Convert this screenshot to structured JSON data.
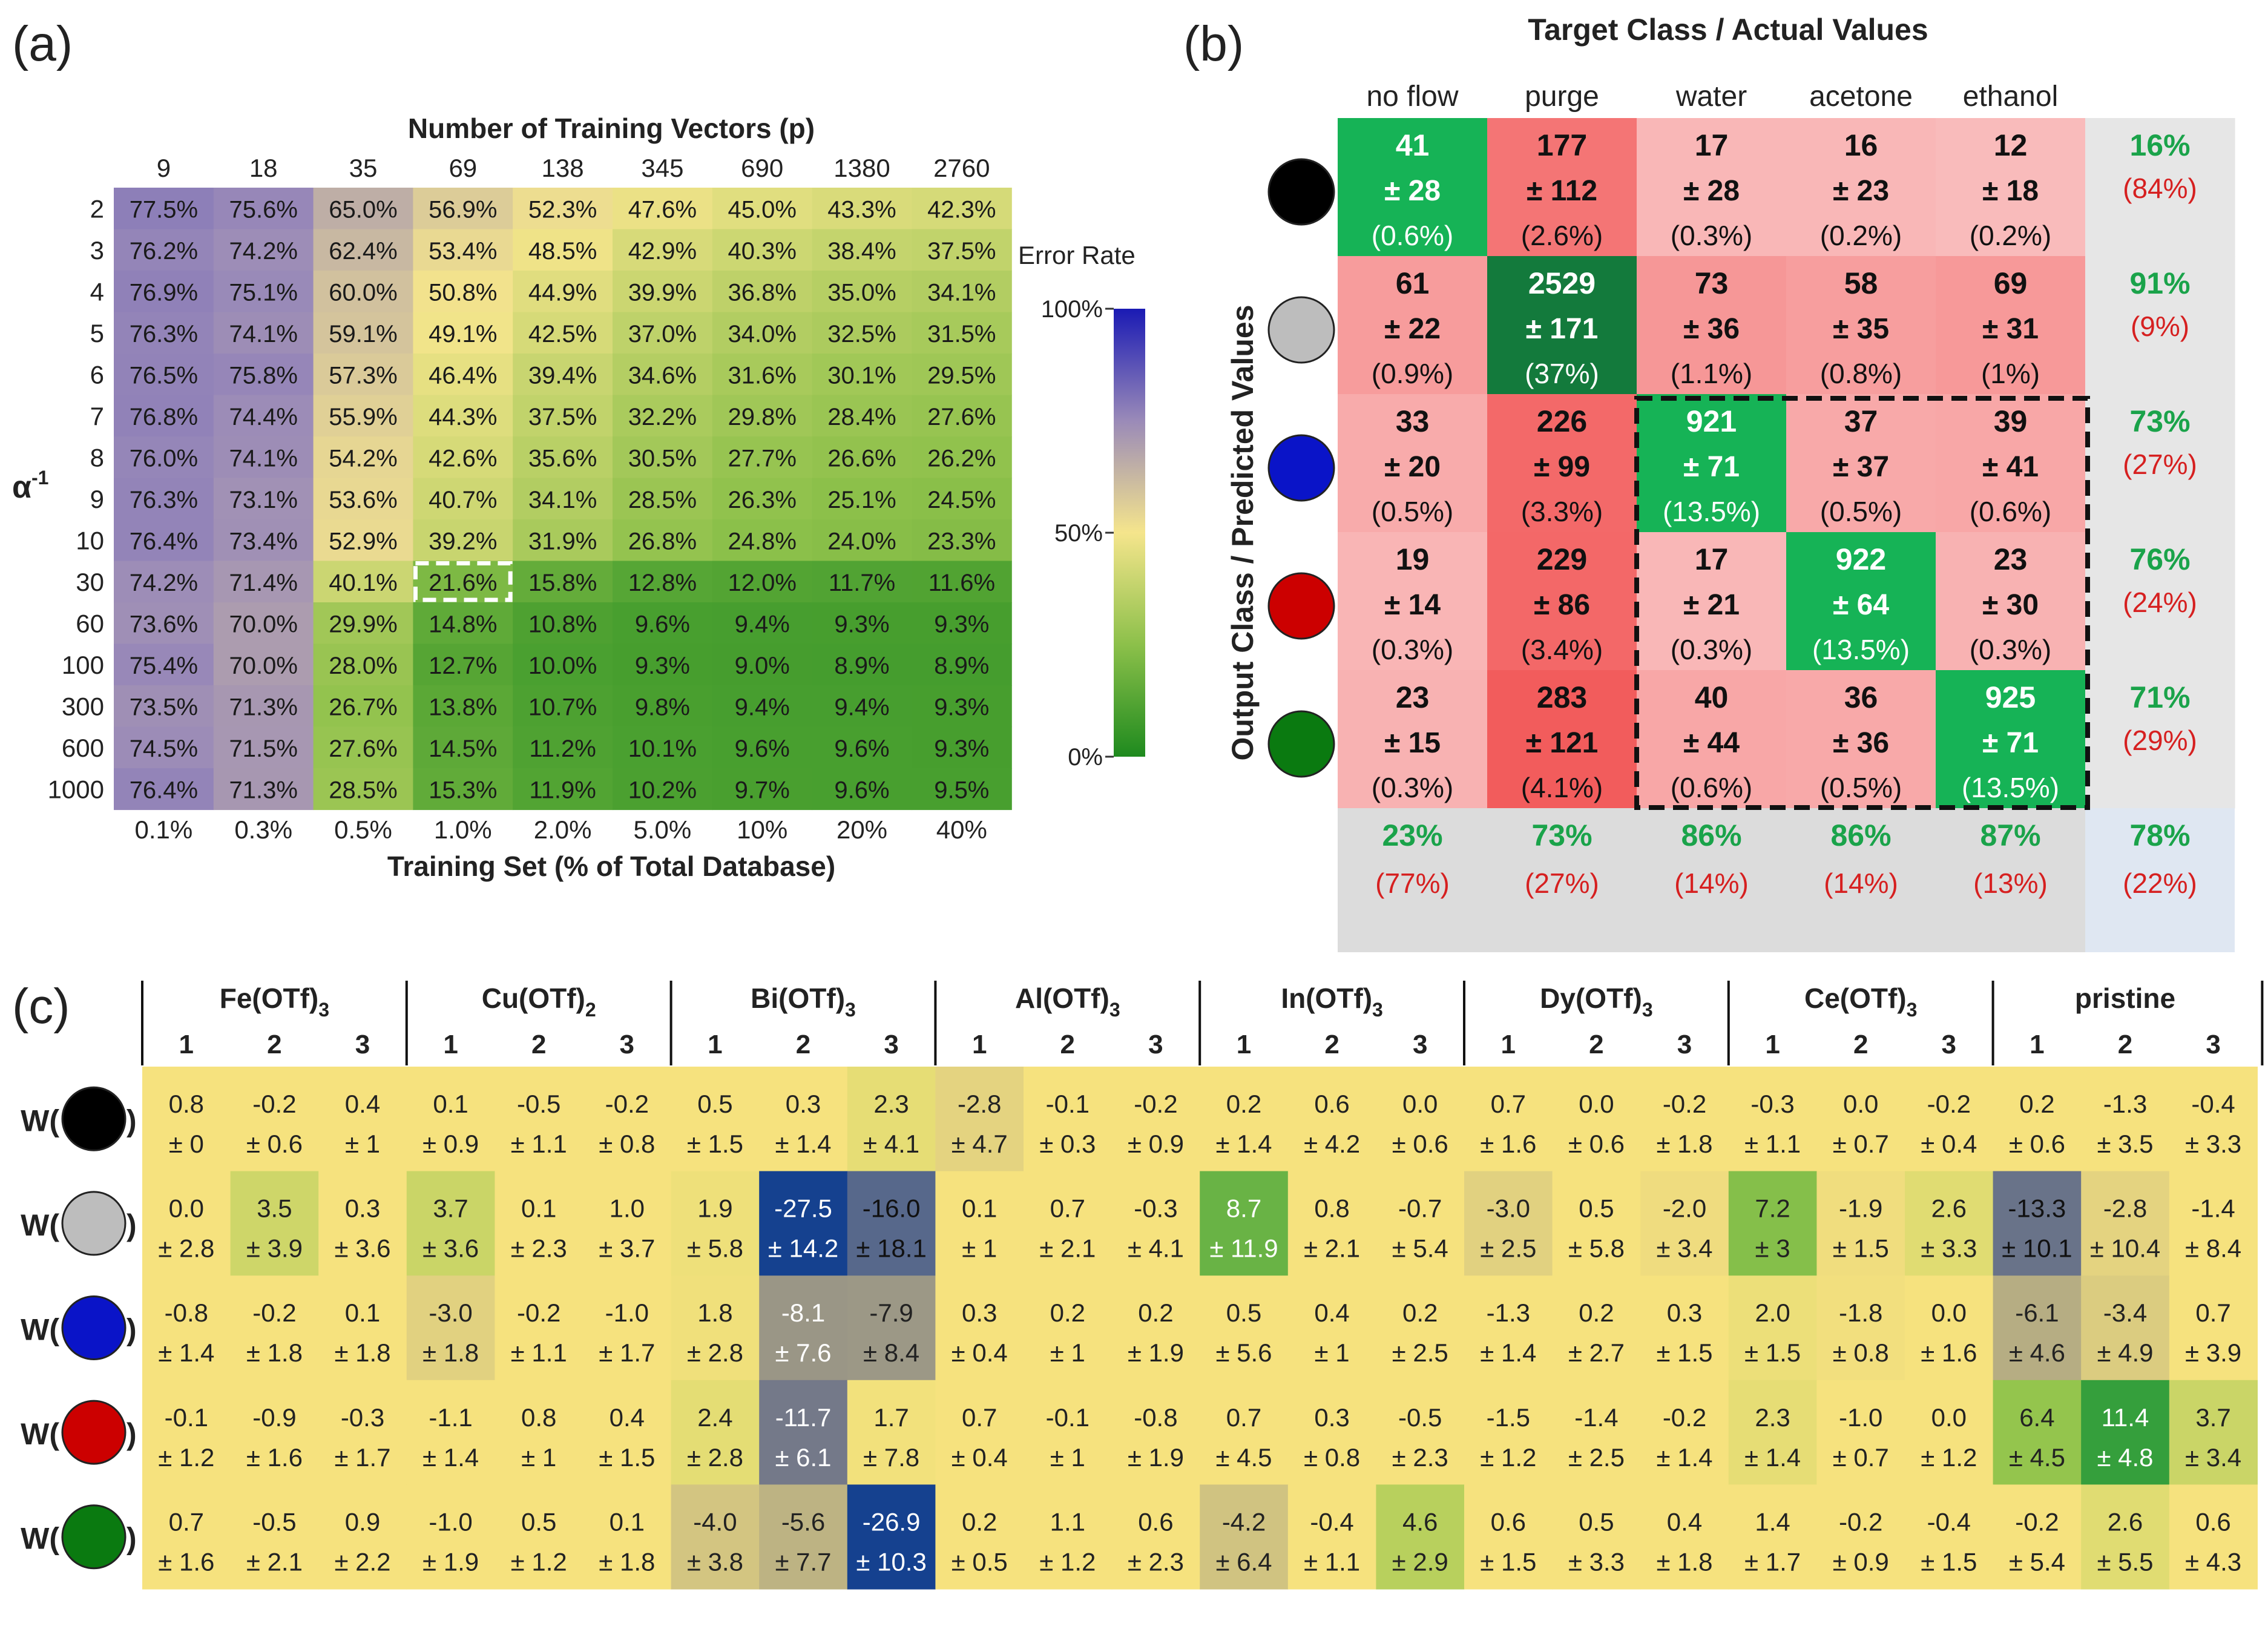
{
  "chart_data": [
    {
      "panel": "(a)",
      "type": "heatmap",
      "title": "Number of Training Vectors (p)",
      "xlabel": "Training Set (% of Total Database)",
      "ylabel": "α",
      "ylabel_sup": "-1",
      "x_top_ticks": [
        "9",
        "18",
        "35",
        "69",
        "138",
        "345",
        "690",
        "1380",
        "2760"
      ],
      "x_bottom_ticks": [
        "0.1%",
        "0.3%",
        "0.5%",
        "1.0%",
        "2.0%",
        "5.0%",
        "10%",
        "20%",
        "40%"
      ],
      "y_ticks": [
        "2",
        "3",
        "4",
        "5",
        "6",
        "7",
        "8",
        "9",
        "10",
        "30",
        "60",
        "100",
        "300",
        "600",
        "1000"
      ],
      "values": [
        [
          77.5,
          75.6,
          65.0,
          56.9,
          52.3,
          47.6,
          45.0,
          43.3,
          42.3
        ],
        [
          76.2,
          74.2,
          62.4,
          53.4,
          48.5,
          42.9,
          40.3,
          38.4,
          37.5
        ],
        [
          76.9,
          75.1,
          60.0,
          50.8,
          44.9,
          39.9,
          36.8,
          35.0,
          34.1
        ],
        [
          76.3,
          74.1,
          59.1,
          49.1,
          42.5,
          37.0,
          34.0,
          32.5,
          31.5
        ],
        [
          76.5,
          75.8,
          57.3,
          46.4,
          39.4,
          34.6,
          31.6,
          30.1,
          29.5
        ],
        [
          76.8,
          74.4,
          55.9,
          44.3,
          37.5,
          32.2,
          29.8,
          28.4,
          27.6
        ],
        [
          76.0,
          74.1,
          54.2,
          42.6,
          35.6,
          30.5,
          27.7,
          26.6,
          26.2
        ],
        [
          76.3,
          73.1,
          53.6,
          40.7,
          34.1,
          28.5,
          26.3,
          25.1,
          24.5
        ],
        [
          76.4,
          73.4,
          52.9,
          39.2,
          31.9,
          26.8,
          24.8,
          24.0,
          23.3
        ],
        [
          74.2,
          71.4,
          40.1,
          21.6,
          15.8,
          12.8,
          12.0,
          11.7,
          11.6
        ],
        [
          73.6,
          70.0,
          29.9,
          14.8,
          10.8,
          9.6,
          9.4,
          9.3,
          9.3
        ],
        [
          75.4,
          70.0,
          28.0,
          12.7,
          10.0,
          9.3,
          9.0,
          8.9,
          8.9
        ],
        [
          73.5,
          71.3,
          26.7,
          13.8,
          10.7,
          9.8,
          9.4,
          9.4,
          9.3
        ],
        [
          74.5,
          71.5,
          27.6,
          14.5,
          11.2,
          10.1,
          9.6,
          9.6,
          9.3
        ],
        [
          76.4,
          71.3,
          28.5,
          15.3,
          11.9,
          10.2,
          9.7,
          9.6,
          9.5
        ]
      ],
      "value_suffix": "%",
      "highlight": {
        "row": "30",
        "column": "69"
      },
      "colorbar": {
        "label": "Error Rate",
        "ticks": [
          "100%",
          "50%",
          "0%"
        ],
        "range": [
          0,
          100
        ]
      }
    },
    {
      "panel": "(b)",
      "type": "table",
      "title": "Target Class / Actual Values",
      "ylabel": "Output Class / Predicted Values",
      "columns": [
        "no flow",
        "purge",
        "water",
        "acetone",
        "ethanol"
      ],
      "row_markers": [
        "#000000",
        "#bdbdbd",
        "#0a14c8",
        "#cc0000",
        "#0a7a10"
      ],
      "cells": [
        [
          {
            "n": "41",
            "sd": "± 28",
            "pct": "(0.6%)"
          },
          {
            "n": "177",
            "sd": "± 112",
            "pct": "(2.6%)"
          },
          {
            "n": "17",
            "sd": "± 28",
            "pct": "(0.3%)"
          },
          {
            "n": "16",
            "sd": "± 23",
            "pct": "(0.2%)"
          },
          {
            "n": "12",
            "sd": "± 18",
            "pct": "(0.2%)"
          }
        ],
        [
          {
            "n": "61",
            "sd": "± 22",
            "pct": "(0.9%)"
          },
          {
            "n": "2529",
            "sd": "± 171",
            "pct": "(37%)"
          },
          {
            "n": "73",
            "sd": "± 36",
            "pct": "(1.1%)"
          },
          {
            "n": "58",
            "sd": "± 35",
            "pct": "(0.8%)"
          },
          {
            "n": "69",
            "sd": "± 31",
            "pct": "(1%)"
          }
        ],
        [
          {
            "n": "33",
            "sd": "± 20",
            "pct": "(0.5%)"
          },
          {
            "n": "226",
            "sd": "± 99",
            "pct": "(3.3%)"
          },
          {
            "n": "921",
            "sd": "± 71",
            "pct": "(13.5%)"
          },
          {
            "n": "37",
            "sd": "± 37",
            "pct": "(0.5%)"
          },
          {
            "n": "39",
            "sd": "± 41",
            "pct": "(0.6%)"
          }
        ],
        [
          {
            "n": "19",
            "sd": "± 14",
            "pct": "(0.3%)"
          },
          {
            "n": "229",
            "sd": "± 86",
            "pct": "(3.4%)"
          },
          {
            "n": "17",
            "sd": "± 21",
            "pct": "(0.3%)"
          },
          {
            "n": "922",
            "sd": "± 64",
            "pct": "(13.5%)"
          },
          {
            "n": "23",
            "sd": "± 30",
            "pct": "(0.3%)"
          }
        ],
        [
          {
            "n": "23",
            "sd": "± 15",
            "pct": "(0.3%)"
          },
          {
            "n": "283",
            "sd": "± 121",
            "pct": "(4.1%)"
          },
          {
            "n": "40",
            "sd": "± 44",
            "pct": "(0.6%)"
          },
          {
            "n": "36",
            "sd": "± 36",
            "pct": "(0.5%)"
          },
          {
            "n": "925",
            "sd": "± 71",
            "pct": "(13.5%)"
          }
        ]
      ],
      "row_summary": [
        {
          "good": "16%",
          "bad": "(84%)"
        },
        {
          "good": "91%",
          "bad": "(9%)"
        },
        {
          "good": "73%",
          "bad": "(27%)"
        },
        {
          "good": "76%",
          "bad": "(24%)"
        },
        {
          "good": "71%",
          "bad": "(29%)"
        }
      ],
      "col_summary": [
        {
          "good": "23%",
          "bad": "(77%)"
        },
        {
          "good": "73%",
          "bad": "(27%)"
        },
        {
          "good": "86%",
          "bad": "(14%)"
        },
        {
          "good": "86%",
          "bad": "(14%)"
        },
        {
          "good": "87%",
          "bad": "(13%)"
        }
      ],
      "overall": {
        "good": "78%",
        "bad": "(22%)"
      }
    },
    {
      "panel": "(c)",
      "type": "heatmap",
      "groups": [
        {
          "name": "Fe(OTf)",
          "sub": "3"
        },
        {
          "name": "Cu(OTf)",
          "sub": "2"
        },
        {
          "name": "Bi(OTf)",
          "sub": "3"
        },
        {
          "name": "Al(OTf)",
          "sub": "3"
        },
        {
          "name": "In(OTf)",
          "sub": "3"
        },
        {
          "name": "Dy(OTf)",
          "sub": "3"
        },
        {
          "name": "Ce(OTf)",
          "sub": "3"
        },
        {
          "name": "pristine",
          "sub": ""
        }
      ],
      "subcols": [
        "1",
        "2",
        "3"
      ],
      "row_prefix": "W(",
      "row_suffix": ")",
      "row_markers": [
        "#000000",
        "#bdbdbd",
        "#0a14c8",
        "#cc0000",
        "#0a7a10"
      ],
      "values": [
        [
          "0.8",
          "-0.2",
          "0.4",
          "0.1",
          "-0.5",
          "-0.2",
          "0.5",
          "0.3",
          "2.3",
          "-2.8",
          "-0.1",
          "-0.2",
          "0.2",
          "0.6",
          "0.0",
          "0.7",
          "0.0",
          "-0.2",
          "-0.3",
          "0.0",
          "-0.2",
          "0.2",
          "-1.3",
          "-0.4"
        ],
        [
          "0.0",
          "3.5",
          "0.3",
          "3.7",
          "0.1",
          "1.0",
          "1.9",
          "-27.5",
          "-16.0",
          "0.1",
          "0.7",
          "-0.3",
          "8.7",
          "0.8",
          "-0.7",
          "-3.0",
          "0.5",
          "-2.0",
          "7.2",
          "-1.9",
          "2.6",
          "-13.3",
          "-2.8",
          "-1.4"
        ],
        [
          "-0.8",
          "-0.2",
          "0.1",
          "-3.0",
          "-0.2",
          "-1.0",
          "1.8",
          "-8.1",
          "-7.9",
          "0.3",
          "0.2",
          "0.2",
          "0.5",
          "0.4",
          "0.2",
          "-1.3",
          "0.2",
          "0.3",
          "2.0",
          "-1.8",
          "0.0",
          "-6.1",
          "-3.4",
          "0.7"
        ],
        [
          "-0.1",
          "-0.9",
          "-0.3",
          "-1.1",
          "0.8",
          "0.4",
          "2.4",
          "-11.7",
          "1.7",
          "0.7",
          "-0.1",
          "-0.8",
          "0.7",
          "0.3",
          "-0.5",
          "-1.5",
          "-1.4",
          "-0.2",
          "2.3",
          "-1.0",
          "0.0",
          "6.4",
          "11.4",
          "3.7"
        ],
        [
          "0.7",
          "-0.5",
          "0.9",
          "-1.0",
          "0.5",
          "0.1",
          "-4.0",
          "-5.6",
          "-26.9",
          "0.2",
          "1.1",
          "0.6",
          "-4.2",
          "-0.4",
          "4.6",
          "0.6",
          "0.5",
          "0.4",
          "1.4",
          "-0.2",
          "-0.4",
          "-0.2",
          "2.6",
          "0.6"
        ]
      ],
      "errors": [
        [
          "± 0",
          "± 0.6",
          "± 1",
          "± 0.9",
          "± 1.1",
          "± 0.8",
          "± 1.5",
          "± 1.4",
          "± 4.1",
          "± 4.7",
          "± 0.3",
          "± 0.9",
          "± 1.4",
          "± 4.2",
          "± 0.6",
          "± 1.6",
          "± 0.6",
          "± 1.8",
          "± 1.1",
          "± 0.7",
          "± 0.4",
          "± 0.6",
          "± 3.5",
          "± 3.3"
        ],
        [
          "± 2.8",
          "± 3.9",
          "± 3.6",
          "± 3.6",
          "± 2.3",
          "± 3.7",
          "± 5.8",
          "± 14.2",
          "± 18.1",
          "± 1",
          "± 2.1",
          "± 4.1",
          "± 11.9",
          "± 2.1",
          "± 5.4",
          "± 2.5",
          "± 5.8",
          "± 3.4",
          "± 3",
          "± 1.5",
          "± 3.3",
          "± 10.1",
          "± 10.4",
          "± 8.4"
        ],
        [
          "± 1.4",
          "± 1.8",
          "± 1.8",
          "± 1.8",
          "± 1.1",
          "± 1.7",
          "± 2.8",
          "± 7.6",
          "± 8.4",
          "± 0.4",
          "± 1",
          "± 1.9",
          "± 5.6",
          "± 1",
          "± 2.5",
          "± 1.4",
          "± 2.7",
          "± 1.5",
          "± 1.5",
          "± 0.8",
          "± 1.6",
          "± 4.6",
          "± 4.9",
          "± 3.9"
        ],
        [
          "± 1.2",
          "± 1.6",
          "± 1.7",
          "± 1.4",
          "± 1",
          "± 1.5",
          "± 2.8",
          "± 6.1",
          "± 7.8",
          "± 0.4",
          "± 1",
          "± 1.9",
          "± 4.5",
          "± 0.8",
          "± 2.3",
          "± 1.2",
          "± 2.5",
          "± 1.4",
          "± 1.4",
          "± 0.7",
          "± 1.2",
          "± 4.5",
          "± 4.8",
          "± 3.4"
        ],
        [
          "± 1.6",
          "± 2.1",
          "± 2.2",
          "± 1.9",
          "± 1.2",
          "± 1.8",
          "± 3.8",
          "± 7.7",
          "± 10.3",
          "± 0.5",
          "± 1.2",
          "± 2.3",
          "± 6.4",
          "± 1.1",
          "± 2.9",
          "± 1.5",
          "± 3.3",
          "± 1.8",
          "± 1.7",
          "± 0.9",
          "± 1.5",
          "± 5.4",
          "± 5.5",
          "± 4.3"
        ]
      ]
    }
  ]
}
